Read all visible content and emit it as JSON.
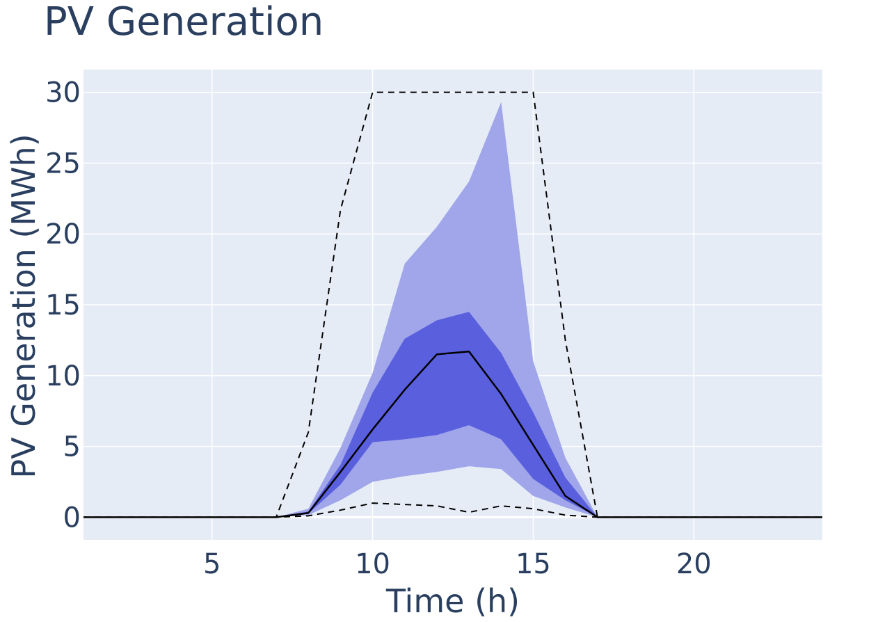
{
  "chart_data": {
    "type": "area",
    "title": "PV Generation",
    "xlabel": "Time (h)",
    "ylabel": "PV Generation (MWh)",
    "xlim": [
      1,
      24
    ],
    "ylim": [
      -1.6,
      31.6
    ],
    "xticks": [
      5,
      10,
      15,
      20
    ],
    "yticks": [
      0,
      5,
      10,
      15,
      20,
      25,
      30
    ],
    "grid": true,
    "legend": "none",
    "colors": {
      "plot_background": "#e5ecf6",
      "grid": "#ffffff",
      "outer_band": "#a0a6e9",
      "inner_band": "#5a5fdd",
      "median_line": "#000000",
      "bound_lines": "#000000",
      "text": "#2a3f5f"
    },
    "x": [
      1,
      2,
      3,
      4,
      5,
      6,
      7,
      8,
      9,
      10,
      11,
      12,
      13,
      14,
      15,
      16,
      17,
      18,
      19,
      20,
      21,
      22,
      23,
      24
    ],
    "series": [
      {
        "role": "upper-bound",
        "style": "dashed",
        "values": [
          0,
          0,
          0,
          0,
          0,
          0,
          0,
          6,
          21.7,
          30,
          30,
          30,
          30,
          30,
          30,
          12.5,
          0,
          0,
          0,
          0,
          0,
          0,
          0,
          0
        ]
      },
      {
        "role": "outer-band-upper",
        "values": [
          0,
          0,
          0,
          0,
          0,
          0,
          0,
          0.6,
          4.9,
          10.2,
          17.9,
          20.5,
          23.7,
          29.3,
          11,
          4.2,
          0,
          0,
          0,
          0,
          0,
          0,
          0,
          0
        ]
      },
      {
        "role": "inner-band-upper",
        "values": [
          0,
          0,
          0,
          0,
          0,
          0,
          0,
          0.4,
          3.7,
          8.8,
          12.6,
          13.9,
          14.5,
          11.6,
          7.4,
          2.8,
          0,
          0,
          0,
          0,
          0,
          0,
          0,
          0
        ]
      },
      {
        "role": "median",
        "style": "solid",
        "values": [
          0,
          0,
          0,
          0,
          0,
          0,
          0,
          0.3,
          3.2,
          6.2,
          9,
          11.5,
          11.7,
          8.7,
          5.1,
          1.5,
          0,
          0,
          0,
          0,
          0,
          0,
          0,
          0
        ]
      },
      {
        "role": "inner-band-lower",
        "values": [
          0,
          0,
          0,
          0,
          0,
          0,
          0,
          0.25,
          2.3,
          5.3,
          5.5,
          5.8,
          6.5,
          5.5,
          2.7,
          1.2,
          0,
          0,
          0,
          0,
          0,
          0,
          0,
          0
        ]
      },
      {
        "role": "outer-band-lower",
        "values": [
          0,
          0,
          0,
          0,
          0,
          0,
          0,
          0.15,
          1.2,
          2.5,
          2.9,
          3.2,
          3.6,
          3.4,
          1.5,
          0.7,
          0,
          0,
          0,
          0,
          0,
          0,
          0,
          0
        ]
      },
      {
        "role": "lower-bound",
        "style": "dashed",
        "values": [
          0,
          0,
          0,
          0,
          0,
          0,
          0,
          0.1,
          0.5,
          1,
          0.9,
          0.8,
          0.35,
          0.8,
          0.6,
          0.15,
          0,
          0,
          0,
          0,
          0,
          0,
          0,
          0
        ]
      }
    ]
  }
}
